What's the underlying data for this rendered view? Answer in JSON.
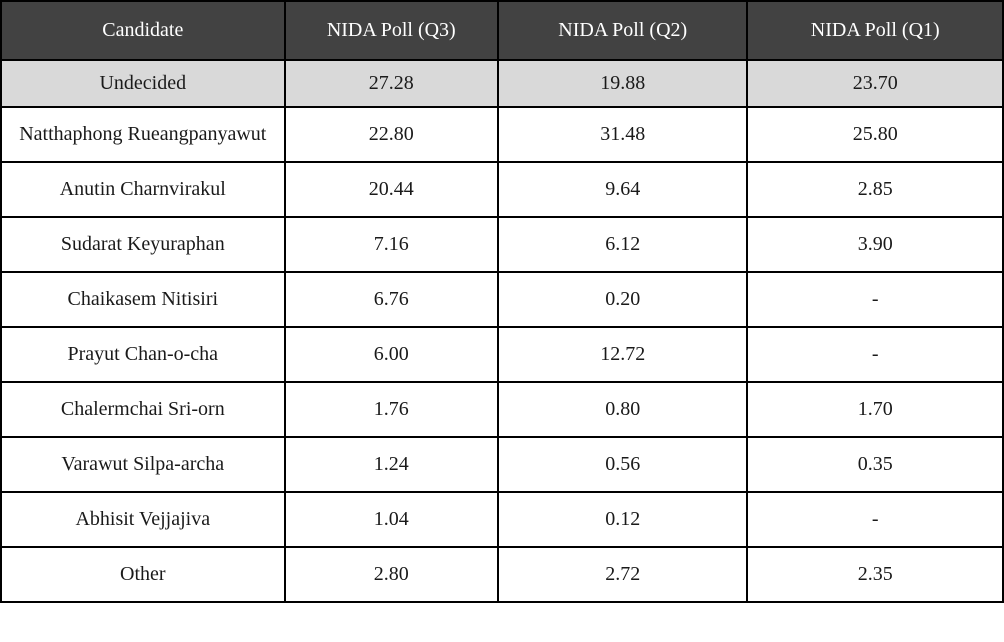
{
  "table": {
    "columns": {
      "candidate": "Candidate",
      "q3": "NIDA Poll (Q3)",
      "q2": "NIDA Poll (Q2)",
      "q1": "NIDA Poll (Q1)"
    },
    "rows": [
      {
        "candidate": "Undecided",
        "q3": "27.28",
        "q2": "19.88",
        "q1": "23.70",
        "highlighted": true
      },
      {
        "candidate": "Natthaphong Rueangpanyawut",
        "q3": "22.80",
        "q2": "31.48",
        "q1": "25.80",
        "highlighted": false
      },
      {
        "candidate": "Anutin Charnvirakul",
        "q3": "20.44",
        "q2": "9.64",
        "q1": "2.85",
        "highlighted": false
      },
      {
        "candidate": "Sudarat Keyuraphan",
        "q3": "7.16",
        "q2": "6.12",
        "q1": "3.90",
        "highlighted": false
      },
      {
        "candidate": "Chaikasem Nitisiri",
        "q3": "6.76",
        "q2": "0.20",
        "q1": "-",
        "highlighted": false
      },
      {
        "candidate": "Prayut Chan-o-cha",
        "q3": "6.00",
        "q2": "12.72",
        "q1": "-",
        "highlighted": false
      },
      {
        "candidate": "Chalermchai Sri-orn",
        "q3": "1.76",
        "q2": "0.80",
        "q1": "1.70",
        "highlighted": false
      },
      {
        "candidate": "Varawut Silpa-archa",
        "q3": "1.24",
        "q2": "0.56",
        "q1": "0.35",
        "highlighted": false
      },
      {
        "candidate": "Abhisit Vejjajiva",
        "q3": "1.04",
        "q2": "0.12",
        "q1": "-",
        "highlighted": false
      },
      {
        "candidate": "Other",
        "q3": "2.80",
        "q2": "2.72",
        "q1": "2.35",
        "highlighted": false
      }
    ]
  },
  "colors": {
    "header_bg": "#424242",
    "header_text": "#ffffff",
    "highlight_row_bg": "#d9d9d9",
    "row_bg": "#ffffff",
    "border": "#000000",
    "body_text": "#1a1a1a"
  },
  "chart_data": {
    "type": "table",
    "title": "",
    "columns": [
      "Candidate",
      "NIDA Poll (Q3)",
      "NIDA Poll (Q2)",
      "NIDA Poll (Q1)"
    ],
    "categories": [
      "Undecided",
      "Natthaphong Rueangpanyawut",
      "Anutin Charnvirakul",
      "Sudarat Keyuraphan",
      "Chaikasem Nitisiri",
      "Prayut Chan-o-cha",
      "Chalermchai Sri-orn",
      "Varawut Silpa-archa",
      "Abhisit Vejjajiva",
      "Other"
    ],
    "series": [
      {
        "name": "NIDA Poll (Q3)",
        "values": [
          27.28,
          22.8,
          20.44,
          7.16,
          6.76,
          6.0,
          1.76,
          1.24,
          1.04,
          2.8
        ]
      },
      {
        "name": "NIDA Poll (Q2)",
        "values": [
          19.88,
          31.48,
          9.64,
          6.12,
          0.2,
          12.72,
          0.8,
          0.56,
          0.12,
          2.72
        ]
      },
      {
        "name": "NIDA Poll (Q1)",
        "values": [
          23.7,
          25.8,
          2.85,
          3.9,
          null,
          null,
          1.7,
          0.35,
          null,
          2.35
        ]
      }
    ],
    "missing_value_symbol": "-",
    "legend_position": "none",
    "grid": true
  }
}
